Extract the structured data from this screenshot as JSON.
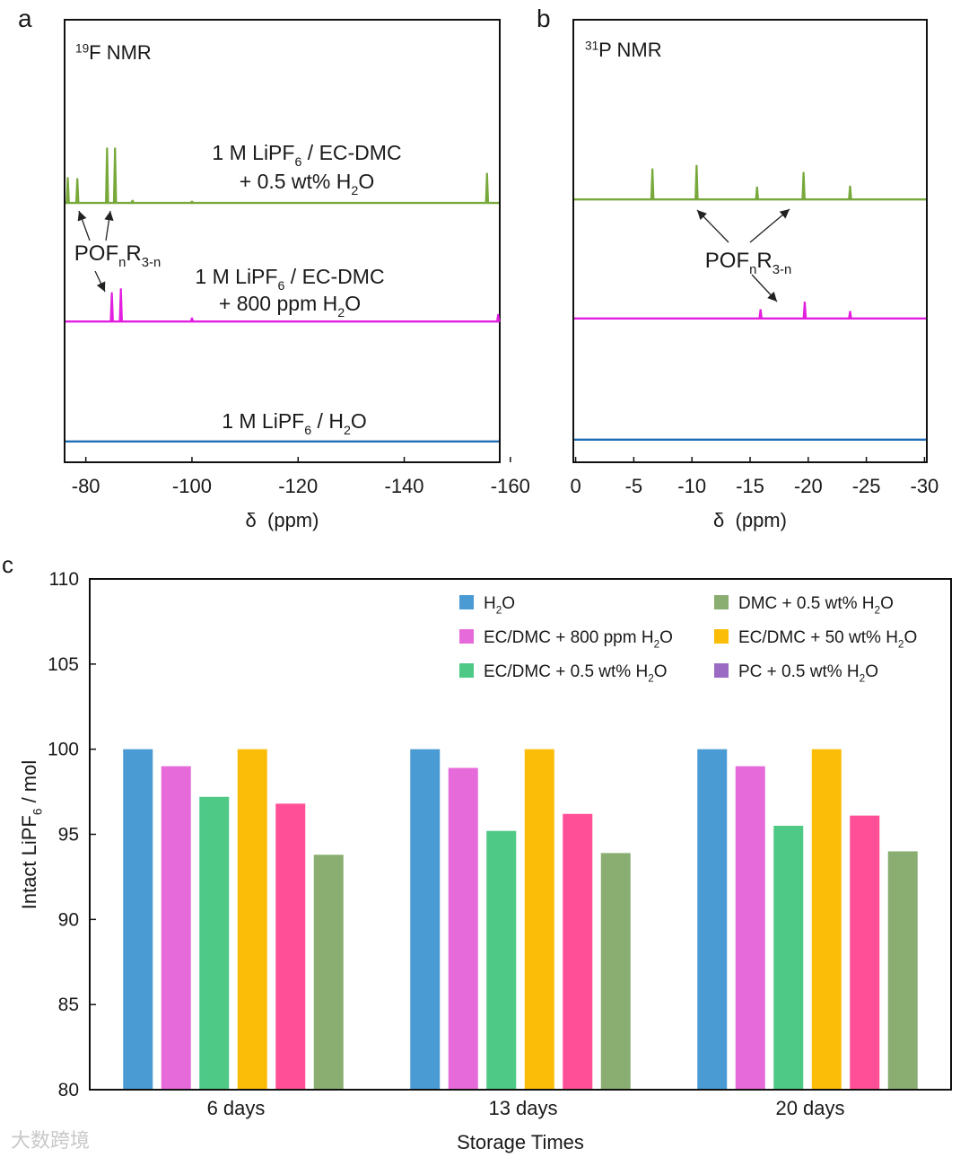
{
  "watermark": "大数跨境",
  "chart_data": [
    {
      "type": "spectrum",
      "label": "a",
      "title": "19F NMR",
      "xlabel": "δ  (ppm)",
      "xlim": [
        -76,
        -158
      ],
      "xticks": [
        -80,
        -100,
        -120,
        -140,
        -160
      ],
      "ylim": [
        0,
        100
      ],
      "annotation": "POFnR3-n",
      "series": [
        {
          "name": [
            "1 M LiPF6 / EC-DMC",
            "+ 0.5 wt% H2O"
          ],
          "color": "#77a83a",
          "baseline": 58.6,
          "peaks": {
            "x": [
              -76.6,
              -78.4,
              -84.0,
              -85.5,
              -88.8,
              -100,
              -155.6
            ],
            "height": [
              5.7,
              5.5,
              12.4,
              12.4,
              0.6,
              0.4,
              6.7
            ]
          }
        },
        {
          "name": [
            "1 M LiPF6 / EC-DMC",
            "+ 800 ppm H2O"
          ],
          "color": "#e31fe0",
          "baseline": 31.8,
          "peaks": {
            "x": [
              -84.9,
              -86.6,
              -100,
              -157.7
            ],
            "height": [
              6.5,
              7.4,
              0.8,
              1.6
            ]
          }
        },
        {
          "name": [
            "1 M LiPF6 / H2O"
          ],
          "color": "#1f6db5",
          "baseline": 4.7,
          "peaks": {
            "x": [],
            "height": []
          }
        }
      ]
    },
    {
      "type": "spectrum",
      "label": "b",
      "title": "31P NMR",
      "xlabel": "δ  (ppm)",
      "xlim": [
        0.2,
        -30.2
      ],
      "xticks": [
        0,
        -5,
        -10,
        -15,
        -20,
        -25,
        -30
      ],
      "ylim": [
        0,
        100
      ],
      "annotation": "POFnR3-n",
      "series": [
        {
          "color": "#77a83a",
          "baseline": 59.4,
          "peaks": {
            "x": [
              -6.6,
              -10.4,
              -15.6,
              -19.6,
              -23.6
            ],
            "height": [
              6.9,
              7.7,
              2.8,
              6.1,
              3.0
            ]
          }
        },
        {
          "color": "#e31fe0",
          "baseline": 32.5,
          "peaks": {
            "x": [
              -15.9,
              -19.7,
              -23.6
            ],
            "height": [
              2.0,
              3.7,
              1.6
            ]
          }
        },
        {
          "color": "#1f6db5",
          "baseline": 5.1,
          "peaks": {
            "x": [],
            "height": []
          }
        }
      ]
    },
    {
      "type": "bar",
      "label": "c",
      "xlabel": "Storage Times",
      "ylabel": "Intact LiPF6 / mol",
      "categories": [
        "6 days",
        "13 days",
        "20 days"
      ],
      "ylim": [
        80,
        110
      ],
      "yticks": [
        80,
        85,
        90,
        95,
        100,
        105,
        110
      ],
      "series": [
        {
          "name": "H2O",
          "color": "#4a9bd4",
          "values": [
            100,
            100,
            100
          ]
        },
        {
          "name": "EC/DMC + 800 ppm H2O",
          "color": "#e66ad9",
          "values": [
            99.0,
            98.9,
            99.0
          ]
        },
        {
          "name": "EC/DMC + 0.5 wt% H2O",
          "color": "#4ec986",
          "values": [
            97.2,
            95.2,
            95.5
          ]
        },
        {
          "name": "EC/DMC + 50 wt% H2O",
          "color": "#fbbd08",
          "values": [
            100,
            100,
            100
          ]
        },
        {
          "name": "PC + 0.5 wt% H2O",
          "color": "#ff4f96",
          "legend_color": "#9b6bc4",
          "values": [
            96.8,
            96.2,
            96.1
          ]
        },
        {
          "name": "DMC + 0.5 wt% H2O",
          "color": "#8aae72",
          "values": [
            93.8,
            93.9,
            94.0
          ]
        }
      ]
    }
  ]
}
